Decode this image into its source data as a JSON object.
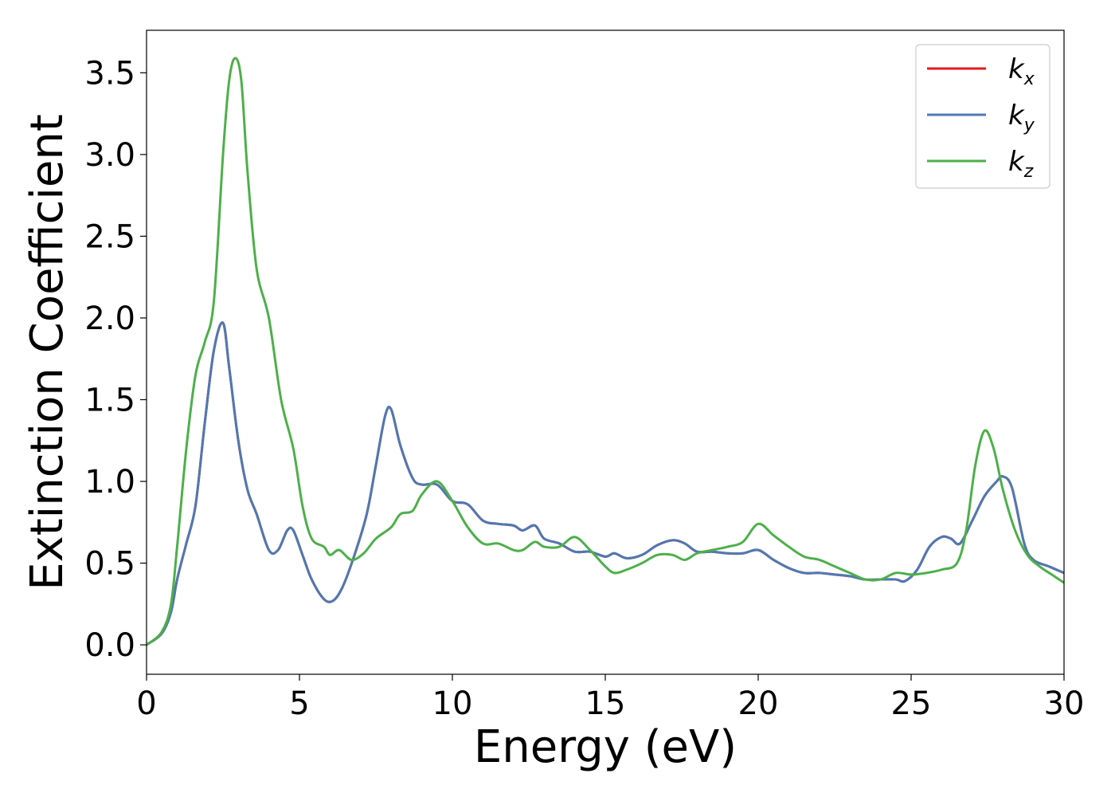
{
  "chart_data": {
    "type": "line",
    "title": "",
    "xlabel": "Energy (eV)",
    "ylabel": "Extinction Coefficient",
    "xlim": [
      0,
      30
    ],
    "ylim": [
      -0.18,
      3.76
    ],
    "xticks": [
      0,
      5,
      10,
      15,
      20,
      25,
      30
    ],
    "xtick_labels": [
      "0",
      "5",
      "10",
      "15",
      "20",
      "25",
      "30"
    ],
    "yticks": [
      0.0,
      0.5,
      1.0,
      1.5,
      2.0,
      2.5,
      3.0,
      3.5
    ],
    "ytick_labels": [
      "0.0",
      "0.5",
      "1.0",
      "1.5",
      "2.0",
      "2.5",
      "3.0",
      "3.5"
    ],
    "grid": false,
    "legend_position": "top-right",
    "series": [
      {
        "name": "k_x",
        "legend_base": "k",
        "legend_sub": "x",
        "color": "#e41a1c",
        "x": [
          0,
          0.5,
          0.8,
          1.0,
          1.3,
          1.6,
          1.9,
          2.2,
          2.5,
          2.7,
          3.0,
          3.3,
          3.6,
          4.0,
          4.3,
          4.6,
          4.8,
          5.1,
          5.4,
          5.8,
          6.1,
          6.4,
          6.8,
          7.2,
          7.5,
          7.8,
          8.0,
          8.3,
          8.7,
          9.0,
          9.5,
          10.0,
          10.5,
          11.0,
          11.5,
          12.0,
          12.3,
          12.7,
          13.0,
          13.5,
          14.0,
          14.5,
          15.0,
          15.3,
          15.7,
          16.2,
          16.7,
          17.2,
          17.6,
          18.0,
          18.5,
          19.0,
          19.5,
          20.0,
          20.5,
          21.0,
          21.5,
          22.0,
          22.5,
          23.0,
          23.5,
          24.0,
          24.5,
          24.8,
          25.2,
          25.6,
          26.0,
          26.3,
          26.6,
          27.0,
          27.4,
          27.8,
          28.0,
          28.3,
          28.7,
          29.0,
          29.5,
          30.0
        ],
        "values": [
          0.0,
          0.07,
          0.2,
          0.4,
          0.62,
          0.85,
          1.35,
          1.8,
          1.97,
          1.7,
          1.25,
          0.95,
          0.8,
          0.58,
          0.58,
          0.7,
          0.7,
          0.55,
          0.4,
          0.28,
          0.27,
          0.35,
          0.55,
          0.8,
          1.1,
          1.4,
          1.44,
          1.22,
          1.02,
          0.98,
          0.98,
          0.88,
          0.86,
          0.76,
          0.74,
          0.73,
          0.7,
          0.73,
          0.65,
          0.62,
          0.57,
          0.57,
          0.54,
          0.56,
          0.53,
          0.55,
          0.61,
          0.64,
          0.62,
          0.57,
          0.57,
          0.56,
          0.56,
          0.58,
          0.52,
          0.47,
          0.44,
          0.44,
          0.43,
          0.42,
          0.4,
          0.4,
          0.4,
          0.39,
          0.46,
          0.6,
          0.66,
          0.65,
          0.62,
          0.76,
          0.91,
          1.0,
          1.03,
          0.96,
          0.62,
          0.52,
          0.48,
          0.44
        ]
      },
      {
        "name": "k_y",
        "legend_base": "k",
        "legend_sub": "y",
        "color": "#4e79b3",
        "x": [
          0,
          0.5,
          0.8,
          1.0,
          1.3,
          1.6,
          1.9,
          2.2,
          2.5,
          2.7,
          3.0,
          3.3,
          3.6,
          4.0,
          4.3,
          4.6,
          4.8,
          5.1,
          5.4,
          5.8,
          6.1,
          6.4,
          6.8,
          7.2,
          7.5,
          7.8,
          8.0,
          8.3,
          8.7,
          9.0,
          9.5,
          10.0,
          10.5,
          11.0,
          11.5,
          12.0,
          12.3,
          12.7,
          13.0,
          13.5,
          14.0,
          14.5,
          15.0,
          15.3,
          15.7,
          16.2,
          16.7,
          17.2,
          17.6,
          18.0,
          18.5,
          19.0,
          19.5,
          20.0,
          20.5,
          21.0,
          21.5,
          22.0,
          22.5,
          23.0,
          23.5,
          24.0,
          24.5,
          24.8,
          25.2,
          25.6,
          26.0,
          26.3,
          26.6,
          27.0,
          27.4,
          27.8,
          28.0,
          28.3,
          28.7,
          29.0,
          29.5,
          30.0
        ],
        "values": [
          0.0,
          0.07,
          0.2,
          0.4,
          0.62,
          0.85,
          1.35,
          1.8,
          1.97,
          1.7,
          1.25,
          0.95,
          0.8,
          0.58,
          0.58,
          0.7,
          0.7,
          0.55,
          0.4,
          0.28,
          0.27,
          0.35,
          0.55,
          0.8,
          1.1,
          1.4,
          1.44,
          1.22,
          1.02,
          0.98,
          0.98,
          0.88,
          0.86,
          0.76,
          0.74,
          0.73,
          0.7,
          0.73,
          0.65,
          0.62,
          0.57,
          0.57,
          0.54,
          0.56,
          0.53,
          0.55,
          0.61,
          0.64,
          0.62,
          0.57,
          0.57,
          0.56,
          0.56,
          0.58,
          0.52,
          0.47,
          0.44,
          0.44,
          0.43,
          0.42,
          0.4,
          0.4,
          0.4,
          0.39,
          0.46,
          0.6,
          0.66,
          0.65,
          0.62,
          0.76,
          0.91,
          1.0,
          1.03,
          0.96,
          0.62,
          0.52,
          0.48,
          0.44
        ]
      },
      {
        "name": "k_z",
        "legend_base": "k",
        "legend_sub": "z",
        "color": "#4daf4a",
        "x": [
          0,
          0.5,
          0.8,
          1.0,
          1.3,
          1.6,
          1.9,
          2.2,
          2.5,
          2.7,
          2.9,
          3.1,
          3.3,
          3.6,
          4.0,
          4.4,
          4.8,
          5.1,
          5.4,
          5.8,
          6.0,
          6.3,
          6.7,
          7.1,
          7.5,
          8.0,
          8.3,
          8.7,
          9.0,
          9.5,
          10.0,
          10.5,
          11.0,
          11.5,
          12.0,
          12.3,
          12.7,
          13.0,
          13.5,
          14.0,
          14.5,
          15.0,
          15.3,
          15.7,
          16.2,
          16.7,
          17.2,
          17.6,
          18.0,
          18.5,
          19.0,
          19.5,
          20.0,
          20.5,
          21.0,
          21.5,
          22.0,
          22.5,
          23.0,
          23.5,
          24.0,
          24.5,
          25.0,
          25.5,
          26.0,
          26.5,
          26.8,
          27.1,
          27.4,
          27.7,
          28.0,
          28.4,
          28.8,
          29.2,
          29.6,
          30.0
        ],
        "values": [
          0.0,
          0.08,
          0.25,
          0.6,
          1.2,
          1.65,
          1.85,
          2.1,
          3.0,
          3.45,
          3.59,
          3.45,
          2.9,
          2.3,
          2.0,
          1.5,
          1.2,
          0.85,
          0.65,
          0.6,
          0.55,
          0.58,
          0.52,
          0.56,
          0.65,
          0.72,
          0.8,
          0.82,
          0.92,
          1.0,
          0.88,
          0.72,
          0.62,
          0.62,
          0.58,
          0.58,
          0.63,
          0.6,
          0.6,
          0.66,
          0.58,
          0.48,
          0.44,
          0.46,
          0.5,
          0.55,
          0.55,
          0.52,
          0.56,
          0.58,
          0.6,
          0.63,
          0.74,
          0.67,
          0.6,
          0.54,
          0.52,
          0.48,
          0.44,
          0.4,
          0.4,
          0.44,
          0.43,
          0.44,
          0.46,
          0.5,
          0.7,
          1.1,
          1.31,
          1.2,
          0.95,
          0.7,
          0.55,
          0.48,
          0.43,
          0.38
        ]
      }
    ]
  }
}
